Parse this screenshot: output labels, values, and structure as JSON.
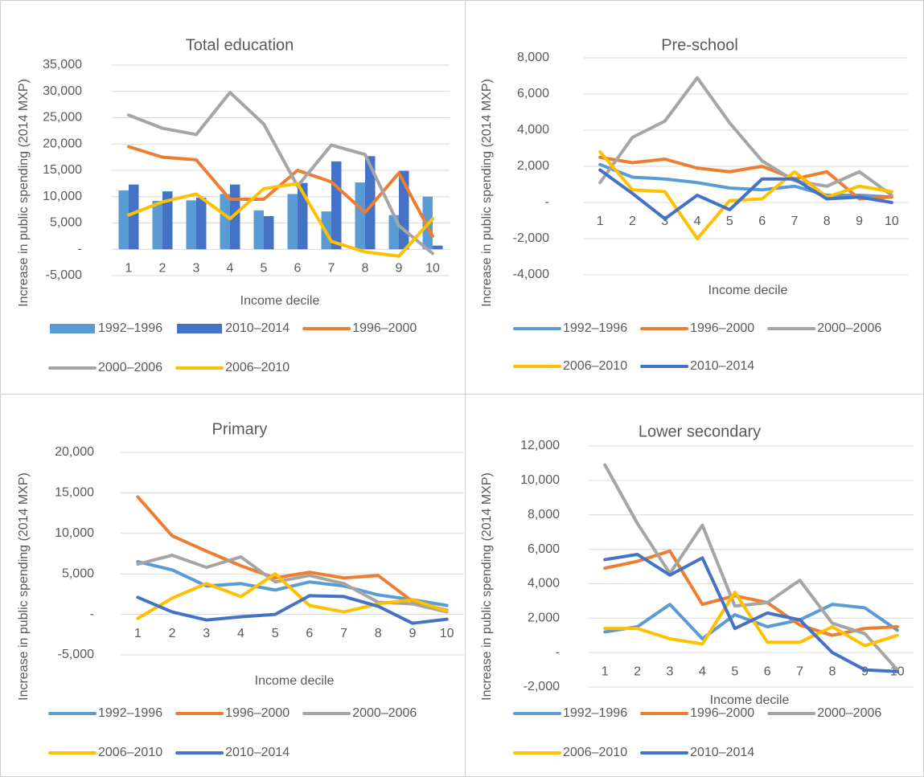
{
  "chart_data": [
    {
      "type": "combo",
      "title": "Total education",
      "y_label": "Increase in public spending  (2014 MXP)",
      "x_label": "Income decile",
      "categories": [
        "1",
        "2",
        "3",
        "4",
        "5",
        "6",
        "7",
        "8",
        "9",
        "10"
      ],
      "ylim": [
        -5000,
        35000
      ],
      "yticks": [
        {
          "value": -5000,
          "label": "-5,000"
        },
        {
          "value": 0,
          "label": "-"
        },
        {
          "value": 5000,
          "label": "5,000"
        },
        {
          "value": 10000,
          "label": "10,000"
        },
        {
          "value": 15000,
          "label": "15,000"
        },
        {
          "value": 20000,
          "label": "20,000"
        },
        {
          "value": 25000,
          "label": "25,000"
        },
        {
          "value": 30000,
          "label": "30,000"
        },
        {
          "value": 35000,
          "label": "35,000"
        }
      ],
      "grid": true,
      "series": [
        {
          "name": "1992–1996",
          "type": "bar",
          "color": "#5b9bd5",
          "values": [
            11200,
            9200,
            9300,
            10500,
            7400,
            10500,
            7200,
            12700,
            6500,
            10000
          ]
        },
        {
          "name": "2010–2014",
          "type": "bar",
          "color": "#4472c4",
          "values": [
            12300,
            11000,
            9800,
            12300,
            6300,
            12600,
            16700,
            17700,
            14900,
            700
          ]
        },
        {
          "name": "1996–2000",
          "type": "line",
          "color": "#ed7d31",
          "values": [
            19500,
            17500,
            17000,
            9500,
            9500,
            15000,
            12800,
            7000,
            14500,
            2500
          ]
        },
        {
          "name": "2000–2006",
          "type": "line",
          "color": "#a5a5a5",
          "values": [
            25500,
            23000,
            21800,
            29800,
            23800,
            12000,
            19800,
            18000,
            4500,
            -800
          ]
        },
        {
          "name": "2006–2010",
          "type": "line",
          "color": "#ffc000",
          "values": [
            6500,
            9000,
            10500,
            5800,
            11500,
            12500,
            1500,
            -500,
            -1300,
            5800
          ]
        }
      ]
    },
    {
      "type": "line",
      "title": "Pre-school",
      "y_label": "Increase in public spending  (2014 MXP)",
      "x_label": "Income decile",
      "categories": [
        "1",
        "2",
        "3",
        "4",
        "5",
        "6",
        "7",
        "8",
        "9",
        "10"
      ],
      "ylim": [
        -4000,
        8000
      ],
      "yticks": [
        {
          "value": -4000,
          "label": "-4,000"
        },
        {
          "value": -2000,
          "label": "-2,000"
        },
        {
          "value": 0,
          "label": "-"
        },
        {
          "value": 2000,
          "label": "2,000"
        },
        {
          "value": 4000,
          "label": "4,000"
        },
        {
          "value": 6000,
          "label": "6,000"
        },
        {
          "value": 8000,
          "label": "8,000"
        }
      ],
      "grid": true,
      "series": [
        {
          "name": "1992–1996",
          "color": "#5b9bd5",
          "values": [
            2100,
            1400,
            1300,
            1100,
            800,
            700,
            900,
            400,
            400,
            300
          ]
        },
        {
          "name": "1996–2000",
          "color": "#ed7d31",
          "values": [
            2500,
            2200,
            2400,
            1900,
            1700,
            2000,
            1300,
            1700,
            200,
            300
          ]
        },
        {
          "name": "2000–2006",
          "color": "#a5a5a5",
          "values": [
            1100,
            3600,
            4500,
            6900,
            4400,
            2300,
            1200,
            900,
            1700,
            400
          ]
        },
        {
          "name": "2006–2010",
          "color": "#ffc000",
          "values": [
            2800,
            700,
            600,
            -2000,
            100,
            200,
            1700,
            300,
            900,
            600
          ]
        },
        {
          "name": "2010–2014",
          "color": "#4472c4",
          "values": [
            1800,
            500,
            -900,
            400,
            -400,
            1300,
            1300,
            200,
            300,
            0
          ]
        }
      ]
    },
    {
      "type": "line",
      "title": "Primary",
      "y_label": "Increase in public spending  (2014 MXP)",
      "x_label": "Income decile",
      "categories": [
        "1",
        "2",
        "3",
        "4",
        "5",
        "6",
        "7",
        "8",
        "9",
        "10"
      ],
      "ylim": [
        -5000,
        20000
      ],
      "yticks": [
        {
          "value": -5000,
          "label": "-5,000"
        },
        {
          "value": 0,
          "label": "-"
        },
        {
          "value": 5000,
          "label": "5,000"
        },
        {
          "value": 10000,
          "label": "10,000"
        },
        {
          "value": 15000,
          "label": "15,000"
        },
        {
          "value": 20000,
          "label": "20,000"
        }
      ],
      "grid": true,
      "series": [
        {
          "name": "1992–1996",
          "color": "#5b9bd5",
          "values": [
            6500,
            5500,
            3500,
            3800,
            3000,
            4000,
            3500,
            2400,
            1800,
            1100
          ]
        },
        {
          "name": "1996–2000",
          "color": "#ed7d31",
          "values": [
            14500,
            9700,
            7800,
            6000,
            4500,
            5200,
            4500,
            4800,
            1600,
            500
          ]
        },
        {
          "name": "2000–2006",
          "color": "#a5a5a5",
          "values": [
            6200,
            7300,
            5800,
            7100,
            4000,
            4800,
            3800,
            1500,
            1300,
            300
          ]
        },
        {
          "name": "2006–2010",
          "color": "#ffc000",
          "values": [
            -500,
            2000,
            3800,
            2200,
            5000,
            1100,
            300,
            1300,
            1800,
            400
          ]
        },
        {
          "name": "2010–2014",
          "color": "#4472c4",
          "values": [
            2100,
            300,
            -700,
            -300,
            0,
            2300,
            2200,
            1000,
            -1100,
            -600
          ]
        }
      ]
    },
    {
      "type": "line",
      "title": "Lower secondary",
      "y_label": "Increase in public spending  (2014 MXP)",
      "x_label": "Income decile",
      "categories": [
        "1",
        "2",
        "3",
        "4",
        "5",
        "6",
        "7",
        "8",
        "9",
        "10"
      ],
      "ylim": [
        -2000,
        12000
      ],
      "yticks": [
        {
          "value": -2000,
          "label": "-2,000"
        },
        {
          "value": 0,
          "label": "-"
        },
        {
          "value": 2000,
          "label": "2,000"
        },
        {
          "value": 4000,
          "label": "4,000"
        },
        {
          "value": 6000,
          "label": "6,000"
        },
        {
          "value": 8000,
          "label": "8,000"
        },
        {
          "value": 10000,
          "label": "10,000"
        },
        {
          "value": 12000,
          "label": "12,000"
        }
      ],
      "grid": true,
      "series": [
        {
          "name": "1992–1996",
          "color": "#5b9bd5",
          "values": [
            1200,
            1500,
            2800,
            800,
            2200,
            1500,
            1900,
            2800,
            2600,
            1300
          ]
        },
        {
          "name": "1996–2000",
          "color": "#ed7d31",
          "values": [
            4900,
            5300,
            5900,
            2800,
            3300,
            2900,
            1600,
            1000,
            1400,
            1500
          ]
        },
        {
          "name": "2000–2006",
          "color": "#a5a5a5",
          "values": [
            10900,
            7500,
            4600,
            7400,
            2700,
            2900,
            4200,
            1700,
            1100,
            -1000
          ]
        },
        {
          "name": "2006–2010",
          "color": "#ffc000",
          "values": [
            1400,
            1400,
            800,
            500,
            3500,
            600,
            600,
            1500,
            400,
            1000
          ]
        },
        {
          "name": "2010–2014",
          "color": "#4472c4",
          "values": [
            5400,
            5700,
            4500,
            5500,
            1400,
            2300,
            1900,
            0,
            -1000,
            -1100
          ]
        }
      ]
    }
  ]
}
